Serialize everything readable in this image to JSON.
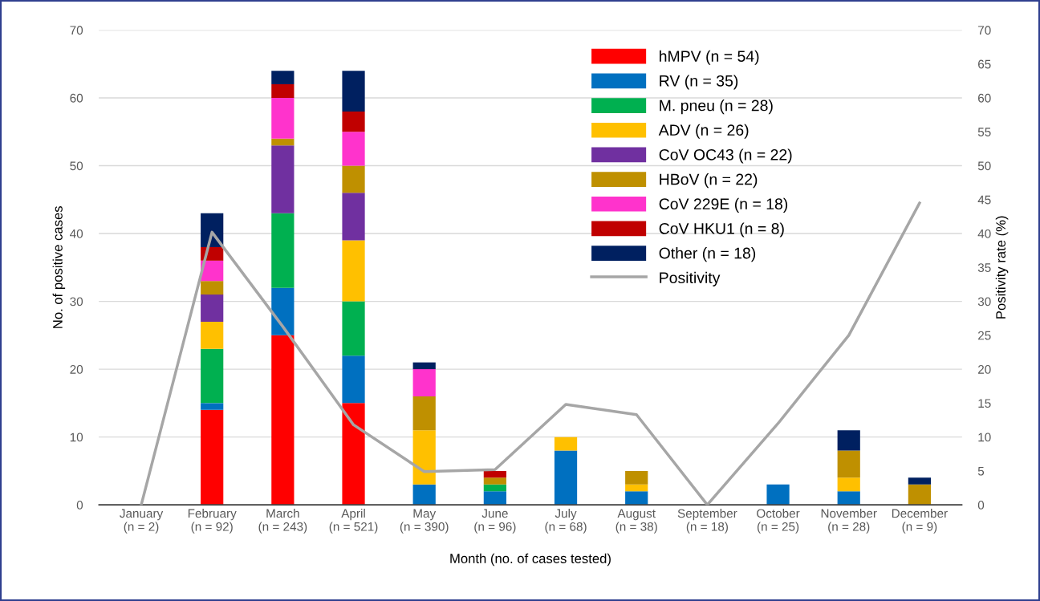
{
  "chart_data": {
    "type": "bar",
    "stacked": true,
    "xlabel": "Month (no. of cases tested)",
    "ylabel": "No. of positive cases",
    "y2label": "Positivity rate (%)",
    "categories": [
      "January\n(n = 2)",
      "February\n(n = 92)",
      "March\n(n = 243)",
      "April\n(n = 521)",
      "May\n(n = 390)",
      "June\n(n = 96)",
      "July\n(n = 68)",
      "August\n(n = 38)",
      "September\n(n = 18)",
      "October\n(n = 25)",
      "November\n(n = 28)",
      "December\n(n = 9)"
    ],
    "series": [
      {
        "name": "hMPV (n = 54)",
        "color": "#ff0000",
        "values": [
          0,
          14,
          25,
          15,
          0,
          0,
          0,
          0,
          0,
          0,
          0,
          0
        ]
      },
      {
        "name": "RV (n = 35)",
        "color": "#0070c0",
        "values": [
          0,
          1,
          7,
          7,
          3,
          2,
          8,
          2,
          0,
          3,
          2,
          0
        ]
      },
      {
        "name": "M. pneu (n = 28)",
        "color": "#00b050",
        "values": [
          0,
          8,
          11,
          8,
          0,
          1,
          0,
          0,
          0,
          0,
          0,
          0
        ]
      },
      {
        "name": "ADV (n = 26)",
        "color": "#ffc000",
        "values": [
          0,
          4,
          0,
          9,
          8,
          0,
          2,
          1,
          0,
          0,
          2,
          0
        ]
      },
      {
        "name": "CoV OC43 (n = 22)",
        "color": "#7030a0",
        "values": [
          0,
          4,
          10,
          7,
          0,
          0,
          0,
          0,
          0,
          0,
          0,
          0
        ]
      },
      {
        "name": "HBoV (n = 22)",
        "color": "#bf9000",
        "values": [
          0,
          2,
          1,
          4,
          5,
          1,
          0,
          2,
          0,
          0,
          4,
          3
        ]
      },
      {
        "name": "CoV 229E (n = 18)",
        "color": "#ff33cc",
        "values": [
          0,
          3,
          6,
          5,
          4,
          0,
          0,
          0,
          0,
          0,
          0,
          0
        ]
      },
      {
        "name": "CoV HKU1 (n = 8)",
        "color": "#c00000",
        "values": [
          0,
          2,
          2,
          3,
          0,
          1,
          0,
          0,
          0,
          0,
          0,
          0
        ]
      },
      {
        "name": "Other (n = 18)",
        "color": "#002060",
        "values": [
          0,
          5,
          2,
          6,
          1,
          0,
          0,
          0,
          0,
          0,
          3,
          1
        ]
      },
      {
        "name": "Positivity",
        "type": "line",
        "axis": "y2",
        "color": "#a6a6a6",
        "values": [
          0,
          40.2,
          26.3,
          11.8,
          4.9,
          5.2,
          14.8,
          13.3,
          0,
          12,
          25,
          44.5
        ]
      }
    ],
    "ylim": [
      0,
      70
    ],
    "yticks": [
      0,
      10,
      20,
      30,
      40,
      50,
      60,
      70
    ],
    "y2lim": [
      0,
      70
    ],
    "y2ticks": [
      0,
      5,
      10,
      15,
      20,
      25,
      30,
      35,
      40,
      45,
      50,
      55,
      60,
      65,
      70
    ],
    "grid": "y",
    "legend": "top right",
    "marker": "none",
    "line_style": "solid"
  }
}
